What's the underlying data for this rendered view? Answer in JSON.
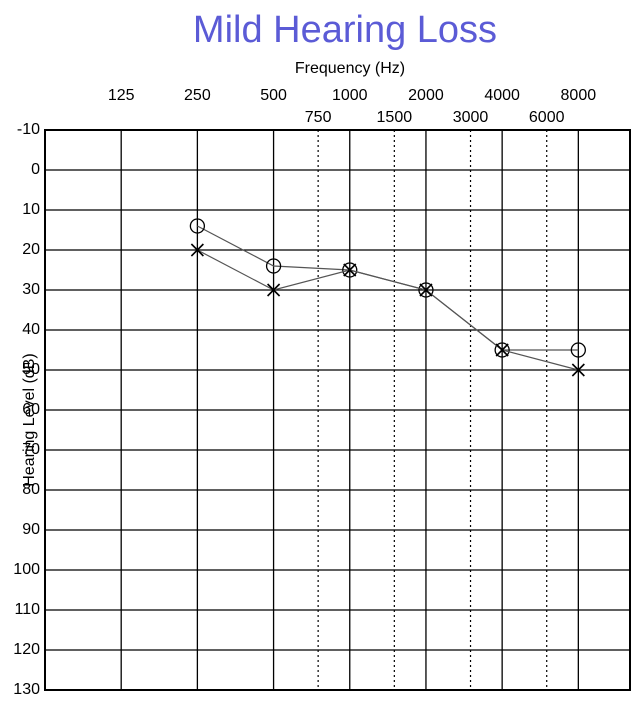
{
  "chart_data": {
    "type": "line",
    "title": "Mild Hearing Loss",
    "title_color": "#5b5bd6",
    "x_label": "Frequency (Hz)",
    "y_label": "Hearing Level (dB)",
    "x_log": true,
    "xlim": [
      62.5,
      12800
    ],
    "xticks": [
      125,
      250,
      500,
      1000,
      2000,
      4000,
      8000
    ],
    "xticks_minor": [
      750,
      1500,
      3000,
      6000
    ],
    "ylim": [
      -10,
      130
    ],
    "y_reversed": true,
    "yticks": [
      -10,
      0,
      10,
      20,
      30,
      40,
      50,
      60,
      70,
      80,
      90,
      100,
      110,
      120,
      130
    ],
    "grid": true,
    "x": [
      250,
      500,
      1000,
      2000,
      4000,
      8000
    ],
    "series": [
      {
        "marker": "circle",
        "color": "#555555",
        "values": [
          14,
          24,
          25,
          30,
          45,
          45
        ]
      },
      {
        "marker": "x",
        "color": "#555555",
        "values": [
          20,
          30,
          25,
          30,
          45,
          50
        ]
      }
    ]
  }
}
